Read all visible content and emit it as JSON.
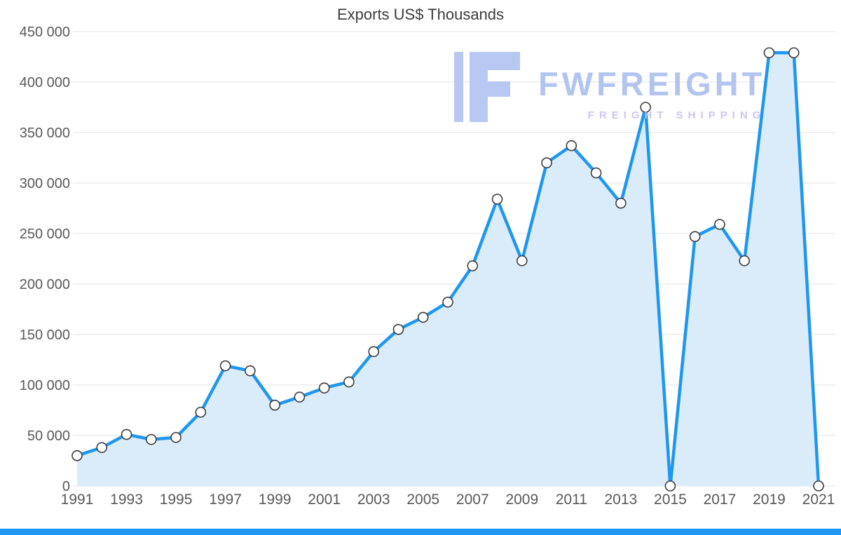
{
  "chart_data": {
    "type": "area",
    "title": "Exports US$ Thousands",
    "series_name": "Exports US$ Thousands",
    "x": [
      1991,
      1992,
      1993,
      1994,
      1995,
      1996,
      1997,
      1998,
      1999,
      2000,
      2001,
      2002,
      2003,
      2004,
      2005,
      2006,
      2007,
      2008,
      2009,
      2010,
      2011,
      2012,
      2013,
      2014,
      2015,
      2016,
      2017,
      2018,
      2019,
      2020,
      2021
    ],
    "values": [
      30000,
      38000,
      51000,
      46000,
      48000,
      73000,
      119000,
      114000,
      80000,
      88000,
      97000,
      103000,
      133000,
      155000,
      167000,
      182000,
      218000,
      284000,
      223000,
      320000,
      337000,
      310000,
      280000,
      375000,
      0,
      247000,
      259000,
      223000,
      429000,
      429000,
      0
    ],
    "ylim": [
      0,
      450000
    ],
    "ytick_values": [
      0,
      50000,
      100000,
      150000,
      200000,
      250000,
      300000,
      350000,
      400000,
      450000
    ],
    "ytick_labels": [
      "0",
      "50 000",
      "100 000",
      "150 000",
      "200 000",
      "250 000",
      "300 000",
      "350 000",
      "400 000",
      "450 000"
    ],
    "xtick_labels": [
      "1991",
      "1993",
      "1995",
      "1997",
      "1999",
      "2001",
      "2003",
      "2005",
      "2007",
      "2009",
      "2011",
      "2013",
      "2015",
      "2017",
      "2019",
      "2021"
    ],
    "grid": true,
    "legend": "none",
    "colors": {
      "line": "#1f97f0",
      "area": "#daecfa",
      "marker_fill": "#ffffff",
      "marker_stroke": "#3d3d3d",
      "gridline": "#e3e3e3",
      "axis_text": "#595959",
      "title_text": "#3c3c3c"
    }
  },
  "watermark": {
    "brand": "FWFREIGHT",
    "tagline": "FREIGHT SHIPPING",
    "brand_color": "#afc1f0",
    "tagline_color": "#cdc2ee",
    "icon_color": "#b5c6f2"
  },
  "footer": {
    "bar_color": "#2196f3"
  }
}
